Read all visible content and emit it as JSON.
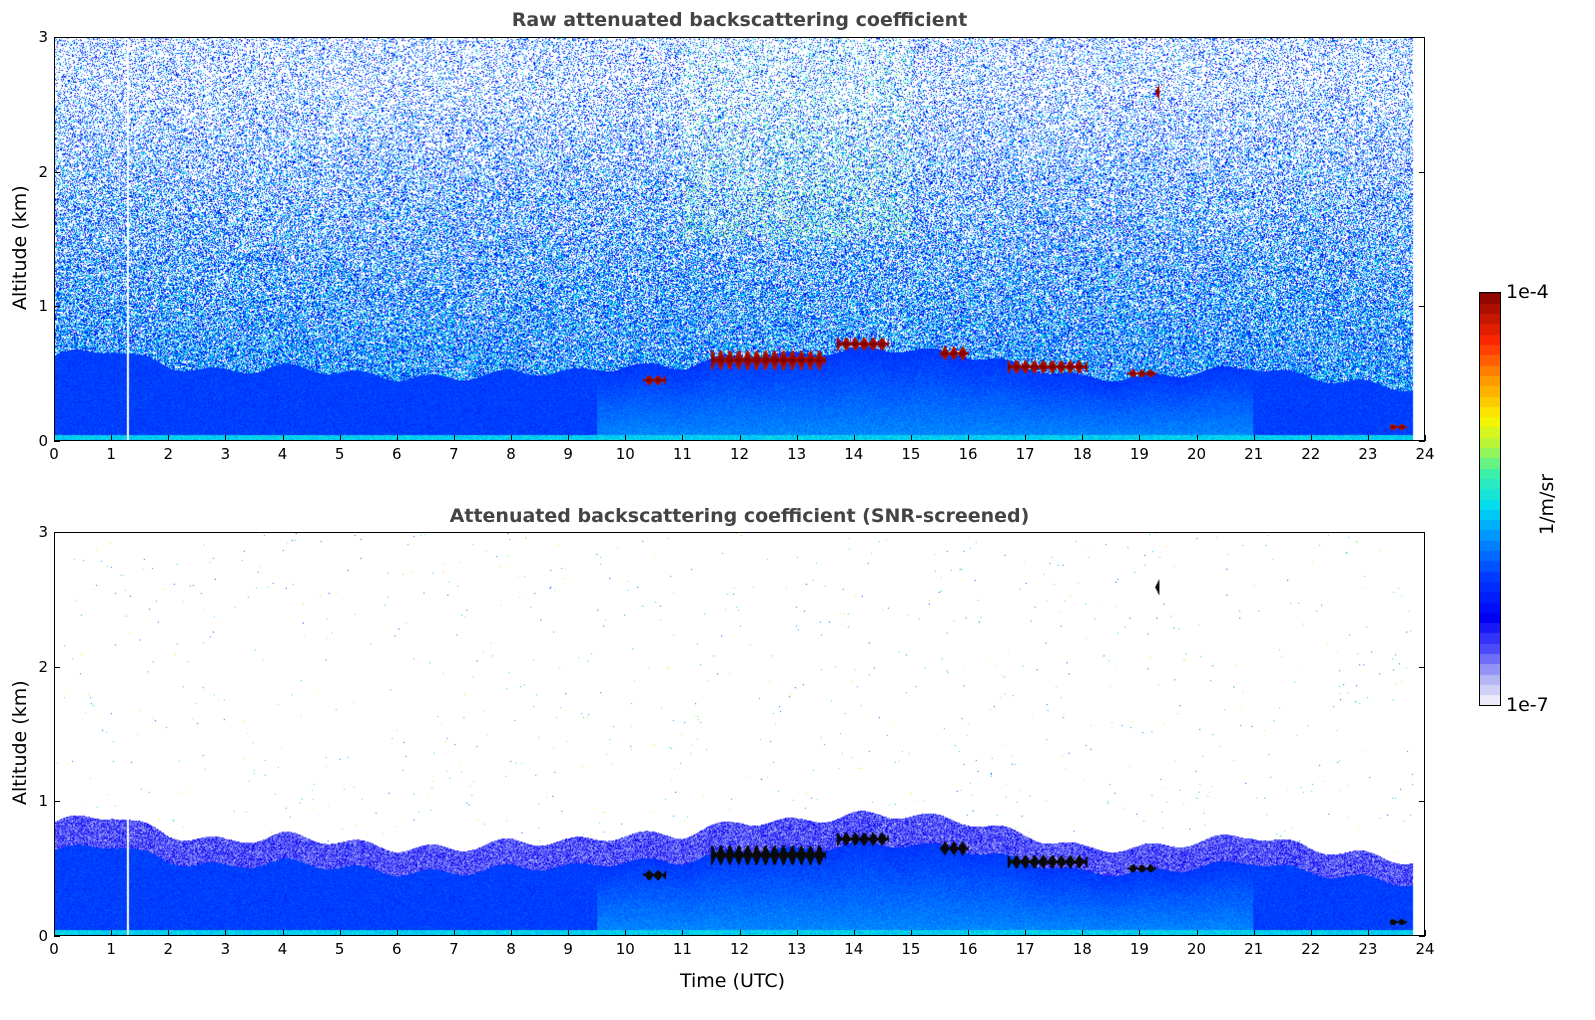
{
  "chart_data": [
    {
      "type": "heatmap",
      "title": "Raw attenuated backscattering coefficient",
      "xlabel": "",
      "ylabel": "Altitude (km)",
      "xlim": [
        0,
        24
      ],
      "ylim": [
        0,
        3
      ],
      "xticks": [
        "0",
        "1",
        "2",
        "3",
        "4",
        "5",
        "6",
        "7",
        "8",
        "9",
        "10",
        "11",
        "12",
        "13",
        "14",
        "15",
        "16",
        "17",
        "18",
        "19",
        "20",
        "21",
        "22",
        "23",
        "24"
      ],
      "yticks": [
        "0",
        "1",
        "2",
        "3"
      ],
      "screened": false
    },
    {
      "type": "heatmap",
      "title": "Attenuated backscattering coefficient (SNR-screened)",
      "xlabel": "Time (UTC)",
      "ylabel": "Altitude (km)",
      "xlim": [
        0,
        24
      ],
      "ylim": [
        0,
        3
      ],
      "xticks": [
        "0",
        "1",
        "2",
        "3",
        "4",
        "5",
        "6",
        "7",
        "8",
        "9",
        "10",
        "11",
        "12",
        "13",
        "14",
        "15",
        "16",
        "17",
        "18",
        "19",
        "20",
        "21",
        "22",
        "23",
        "24"
      ],
      "yticks": [
        "0",
        "1",
        "2",
        "3"
      ],
      "screened": true
    }
  ],
  "boundary_layer_top_km": {
    "t": [
      0,
      1,
      2,
      3,
      4,
      5,
      6,
      7,
      8,
      9,
      10,
      11,
      12,
      13,
      14,
      15,
      16,
      17,
      18,
      19,
      20,
      21,
      22,
      23,
      23.8
    ],
    "h": [
      0.75,
      0.8,
      0.65,
      0.6,
      0.65,
      0.6,
      0.55,
      0.55,
      0.6,
      0.6,
      0.65,
      0.65,
      0.75,
      0.75,
      0.8,
      0.8,
      0.75,
      0.65,
      0.55,
      0.55,
      0.6,
      0.65,
      0.55,
      0.5,
      0.45
    ]
  },
  "clouds": [
    {
      "t0": 10.3,
      "t1": 10.7,
      "z": 0.45,
      "dz": 0.08
    },
    {
      "t0": 11.5,
      "t1": 13.5,
      "z": 0.6,
      "dz": 0.15
    },
    {
      "t0": 13.7,
      "t1": 14.6,
      "z": 0.72,
      "dz": 0.1
    },
    {
      "t0": 15.5,
      "t1": 16,
      "z": 0.65,
      "dz": 0.1
    },
    {
      "t0": 16.7,
      "t1": 18.1,
      "z": 0.55,
      "dz": 0.1
    },
    {
      "t0": 18.8,
      "t1": 19.3,
      "z": 0.5,
      "dz": 0.06
    },
    {
      "t0": 19.28,
      "t1": 19.36,
      "z": 2.6,
      "dz": 0.12
    },
    {
      "t0": 23.4,
      "t1": 23.7,
      "z": 0.1,
      "dz": 0.05
    }
  ],
  "data_end_hour": 23.8,
  "colorbar": {
    "label": "1/m/sr",
    "min_label": "1e-7",
    "max_label": "1e-4"
  }
}
